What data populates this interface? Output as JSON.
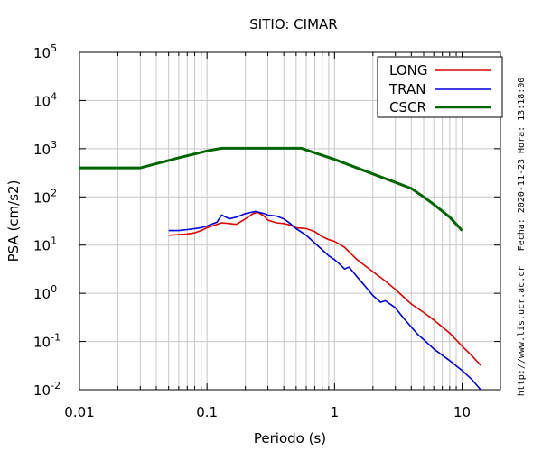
{
  "chart_data": {
    "type": "line",
    "title": "SITIO: CIMAR",
    "xlabel": "Periodo (s)",
    "ylabel": "PSA (cm/s2)",
    "xscale": "log",
    "yscale": "log",
    "xlim": [
      0.01,
      20
    ],
    "ylim": [
      0.01,
      100000
    ],
    "grid": true,
    "legend_position": "top-right",
    "x_tick_labels": [
      "0.01",
      "0.1",
      "1",
      "10"
    ],
    "y_tick_labels": [
      {
        "base": "10",
        "exp": "-2"
      },
      {
        "base": "10",
        "exp": "-1"
      },
      {
        "base": "10",
        "exp": "0"
      },
      {
        "base": "10",
        "exp": "1"
      },
      {
        "base": "10",
        "exp": "2"
      },
      {
        "base": "10",
        "exp": "3"
      },
      {
        "base": "10",
        "exp": "4"
      },
      {
        "base": "10",
        "exp": "5"
      }
    ],
    "series": [
      {
        "name": "LONG",
        "color": "#dd0000",
        "points": [
          [
            0.05,
            16
          ],
          [
            0.06,
            16.5
          ],
          [
            0.07,
            17
          ],
          [
            0.08,
            18
          ],
          [
            0.09,
            20
          ],
          [
            0.1,
            23
          ],
          [
            0.11,
            25
          ],
          [
            0.12,
            27
          ],
          [
            0.13,
            29
          ],
          [
            0.15,
            28
          ],
          [
            0.17,
            27
          ],
          [
            0.2,
            35
          ],
          [
            0.23,
            45
          ],
          [
            0.25,
            48
          ],
          [
            0.28,
            40
          ],
          [
            0.3,
            33
          ],
          [
            0.35,
            29
          ],
          [
            0.4,
            28
          ],
          [
            0.45,
            26
          ],
          [
            0.5,
            23
          ],
          [
            0.6,
            22
          ],
          [
            0.7,
            19
          ],
          [
            0.8,
            15
          ],
          [
            0.9,
            13
          ],
          [
            1.0,
            12
          ],
          [
            1.2,
            9
          ],
          [
            1.5,
            5
          ],
          [
            2.0,
            2.8
          ],
          [
            2.5,
            1.8
          ],
          [
            3.0,
            1.2
          ],
          [
            4.0,
            0.6
          ],
          [
            5.0,
            0.4
          ],
          [
            6.0,
            0.28
          ],
          [
            8.0,
            0.15
          ],
          [
            10.0,
            0.08
          ],
          [
            12.0,
            0.05
          ],
          [
            14.0,
            0.032
          ]
        ]
      },
      {
        "name": "TRAN",
        "color": "#0000dd",
        "points": [
          [
            0.05,
            20
          ],
          [
            0.06,
            20
          ],
          [
            0.07,
            21
          ],
          [
            0.08,
            22
          ],
          [
            0.09,
            23
          ],
          [
            0.1,
            25
          ],
          [
            0.12,
            30
          ],
          [
            0.13,
            42
          ],
          [
            0.15,
            35
          ],
          [
            0.17,
            38
          ],
          [
            0.2,
            45
          ],
          [
            0.24,
            50
          ],
          [
            0.28,
            45
          ],
          [
            0.3,
            42
          ],
          [
            0.35,
            40
          ],
          [
            0.4,
            35
          ],
          [
            0.45,
            28
          ],
          [
            0.5,
            22
          ],
          [
            0.6,
            16
          ],
          [
            0.7,
            11
          ],
          [
            0.8,
            8
          ],
          [
            0.9,
            6
          ],
          [
            1.0,
            5
          ],
          [
            1.1,
            4
          ],
          [
            1.2,
            3.2
          ],
          [
            1.3,
            3.5
          ],
          [
            1.5,
            2.2
          ],
          [
            1.7,
            1.5
          ],
          [
            2.0,
            0.9
          ],
          [
            2.3,
            0.65
          ],
          [
            2.5,
            0.7
          ],
          [
            3.0,
            0.5
          ],
          [
            3.5,
            0.3
          ],
          [
            4.0,
            0.2
          ],
          [
            4.5,
            0.14
          ],
          [
            5.0,
            0.11
          ],
          [
            6.0,
            0.07
          ],
          [
            8.0,
            0.04
          ],
          [
            10.0,
            0.025
          ],
          [
            12.0,
            0.016
          ],
          [
            14.0,
            0.01
          ]
        ]
      },
      {
        "name": "CSCR",
        "color": "#006600",
        "points": [
          [
            0.01,
            400
          ],
          [
            0.03,
            400
          ],
          [
            0.06,
            650
          ],
          [
            0.1,
            900
          ],
          [
            0.13,
            1020
          ],
          [
            0.2,
            1020
          ],
          [
            0.3,
            1020
          ],
          [
            0.55,
            1020
          ],
          [
            1.0,
            600
          ],
          [
            2.0,
            300
          ],
          [
            3.0,
            200
          ],
          [
            4.0,
            150
          ],
          [
            5.0,
            100
          ],
          [
            6.0,
            70
          ],
          [
            8.0,
            38
          ],
          [
            10.0,
            20
          ]
        ]
      }
    ]
  },
  "side_notes": {
    "timestamp": "Fecha: 2020-11-23  Hora: 13:18:00",
    "url": "http://www.lis.ucr.ac.cr"
  }
}
